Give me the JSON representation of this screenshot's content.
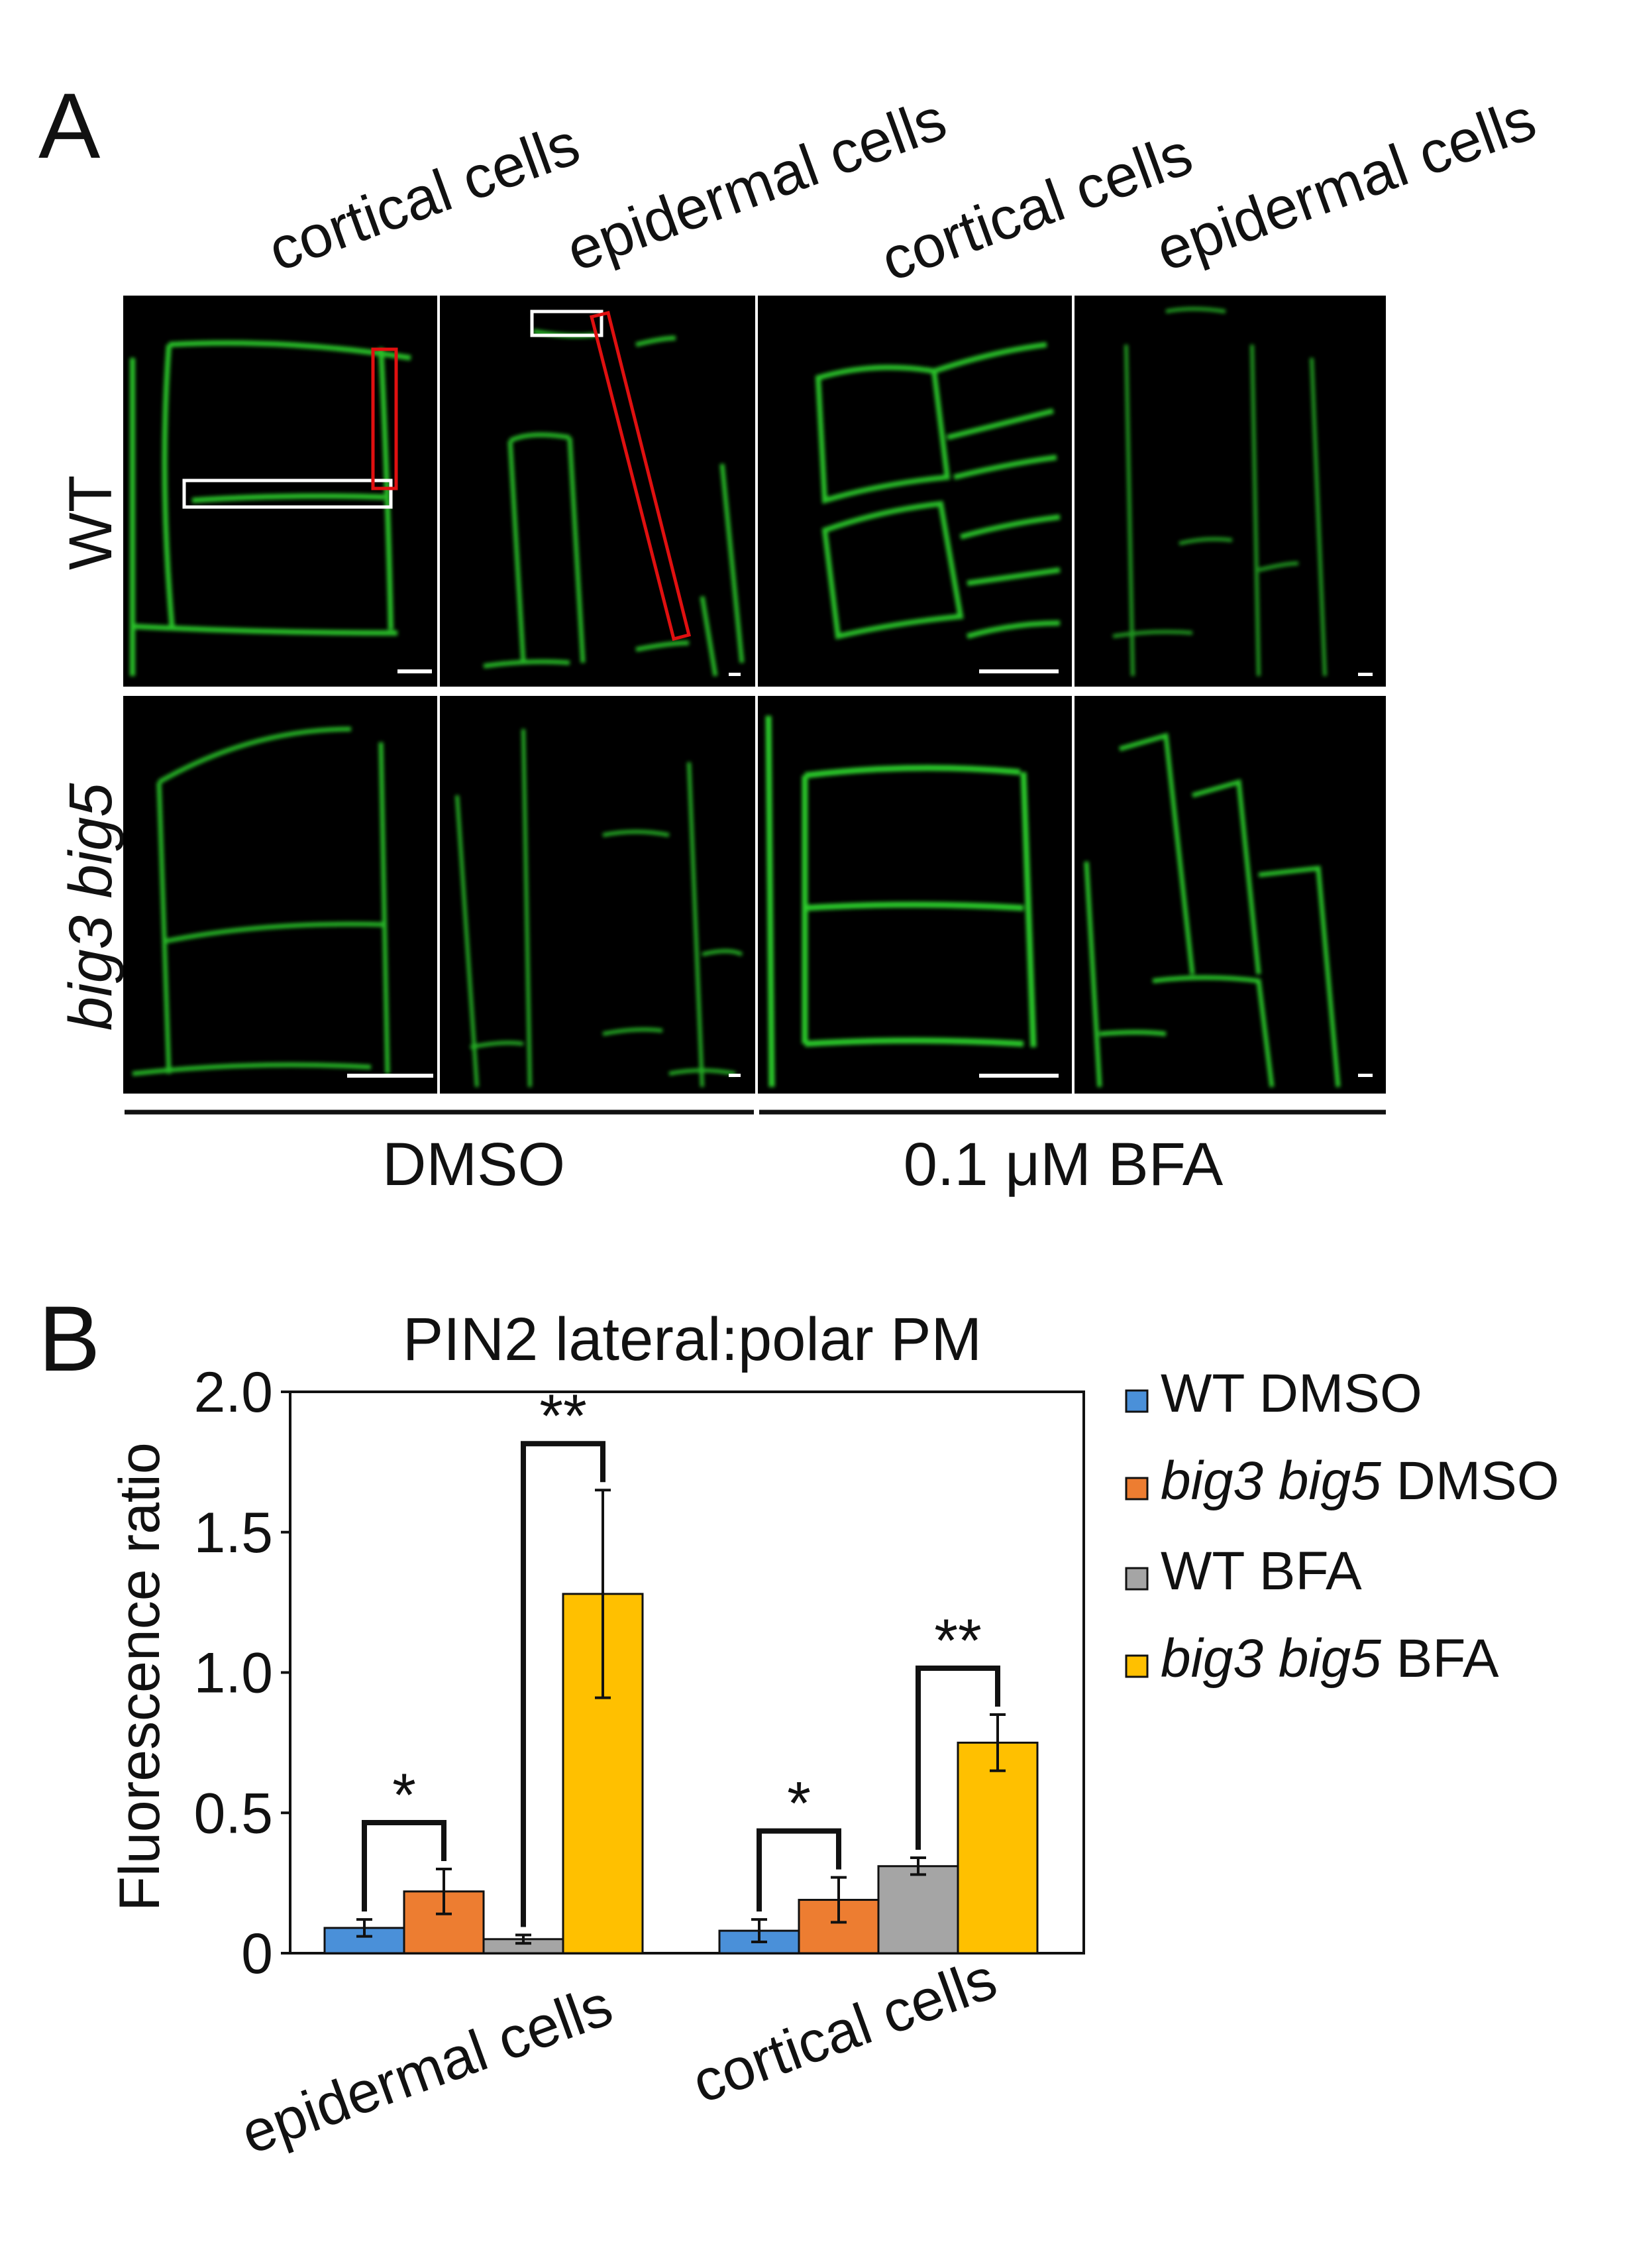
{
  "panel_a": {
    "label": "A",
    "column_headers": [
      "cortical cells",
      "epidermal cells",
      "cortical cells",
      "epidermal cells"
    ],
    "row_labels": {
      "wt": "WT",
      "mutant": "big3 big5"
    },
    "treatment_labels": [
      "DMSO",
      "0.1 μM BFA"
    ],
    "image_description": "confocal micrographs of PIN2 green fluorescence at plasma membranes of root cortical and epidermal cells",
    "colors": {
      "background": "#000000",
      "membrane": "#2fd62f",
      "lateral_roi": "#ffffff",
      "polar_roi": "#e01010"
    }
  },
  "panel_b": {
    "label": "B",
    "chart_data": {
      "type": "bar",
      "title": "PIN2 lateral:polar PM",
      "ylabel": "Fluorescence ratio",
      "xlabel": "",
      "ylim": [
        0,
        2.0
      ],
      "yticks": [
        "0",
        "0.5",
        "1.0",
        "1.5",
        "2.0"
      ],
      "categories": [
        "epidermal cells",
        "cortical cells"
      ],
      "series": [
        {
          "name": "WT DMSO",
          "legend_parts": [
            "WT DMSO"
          ],
          "color": "#4a90d9",
          "values": [
            0.09,
            0.08
          ],
          "errors": [
            0.03,
            0.04
          ]
        },
        {
          "name": "big3 big5 DMSO",
          "legend_parts": [
            "big3 big5",
            "DMSO"
          ],
          "color": "#ed7d31",
          "values": [
            0.22,
            0.19
          ],
          "errors": [
            0.08,
            0.08
          ]
        },
        {
          "name": "WT BFA",
          "legend_parts": [
            "WT BFA"
          ],
          "color": "#a5a5a5",
          "values": [
            0.05,
            0.31
          ],
          "errors": [
            0.015,
            0.03
          ]
        },
        {
          "name": "big3 big5 BFA",
          "legend_parts": [
            "big3 big5",
            "BFA"
          ],
          "color": "#ffc000",
          "values": [
            1.28,
            0.75
          ],
          "errors": [
            0.37,
            0.1
          ]
        }
      ],
      "significance": [
        {
          "category": 0,
          "from": 0,
          "to": 1,
          "label": "*"
        },
        {
          "category": 0,
          "from": 2,
          "to": 3,
          "label": "**"
        },
        {
          "category": 1,
          "from": 0,
          "to": 1,
          "label": "*"
        },
        {
          "category": 1,
          "from": 2,
          "to": 3,
          "label": "**"
        }
      ]
    }
  }
}
